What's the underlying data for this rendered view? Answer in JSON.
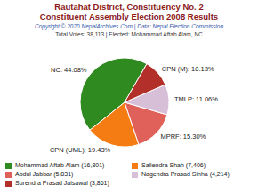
{
  "chart_data": {
    "type": "pie",
    "title": "Rautahat District, Constituency No. 2",
    "subtitle": "Constituent Assembly Election 2008 Results",
    "annotations": [
      "Copyright © 2020 NepalArchives.Com | Data: Nepal Election Commission",
      "Total Votes: 38,113 | Elected: Mohammad Aftab Alam, NC"
    ],
    "categories": [
      "NC",
      "CPN (UML)",
      "MPRF",
      "TMLP",
      "CPN (M)"
    ],
    "values": [
      44.08,
      19.43,
      15.3,
      11.06,
      10.13
    ],
    "value_labels": [
      "NC: 44.08%",
      "CPN (UML): 19.43%",
      "MPRF: 15.30%",
      "TMLP: 11.06%",
      "CPN (M): 10.13%"
    ],
    "data_labels": true,
    "colors": [
      "#2f8a1f",
      "#f57c12",
      "#e0605a",
      "#d8bfd8",
      "#b3302a"
    ],
    "candidates": [
      "Mohammad Aftab Alam (16,801)",
      "Sailendra Shah (7,406)",
      "Abdul Jabbar (5,831)",
      "Nagendra Prasad Sinha (4,214)",
      "Surendra Prasad Jaisawal (3,861)"
    ]
  }
}
